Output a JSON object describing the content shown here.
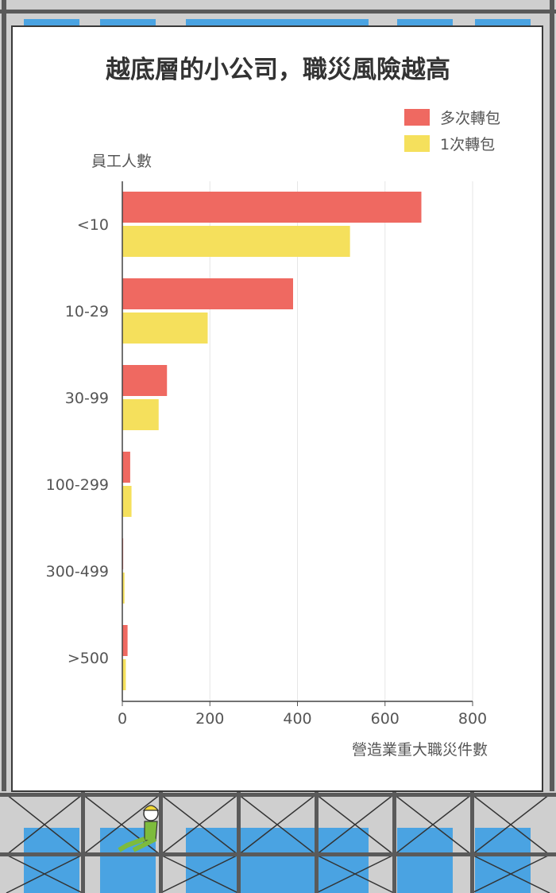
{
  "chart_data": {
    "type": "bar",
    "orientation": "horizontal",
    "title": "越底層的小公司，職災風險越高",
    "xlabel": "營造業重大職災件數",
    "ylabel": "員工人數",
    "categories": [
      "<10",
      "10-29",
      "30-99",
      "100-299",
      "300-499",
      ">500"
    ],
    "series": [
      {
        "name": "多次轉包",
        "color": "#ef6961",
        "values": [
          683,
          390,
          102,
          18,
          2,
          12
        ]
      },
      {
        "name": "1次轉包",
        "color": "#f5e05c",
        "values": [
          520,
          195,
          83,
          21,
          5,
          8
        ]
      }
    ],
    "xlim": [
      0,
      800
    ],
    "xticks": [
      0,
      200,
      400,
      600,
      800
    ],
    "grid": "vertical",
    "legend": "top-right"
  },
  "colors": {
    "scaffold_blue": "#4aa3e2",
    "scaffold_frame": "#5a5a5a",
    "worker_green": "#7dbb3c",
    "worker_helmet": "#f0d838"
  },
  "illustration": {
    "icon": "construction-worker-icon"
  }
}
